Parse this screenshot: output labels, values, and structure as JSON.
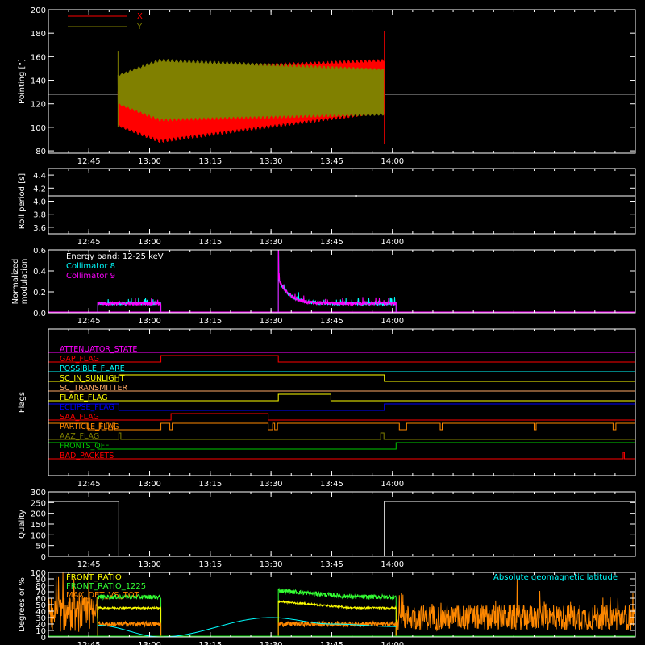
{
  "colors": {
    "background": "#000000",
    "foreground": "#ffffff",
    "red": "#ff0000",
    "olive": "#808000",
    "cyan": "#00ffff",
    "magenta": "#ff00ff",
    "orange": "#ff8800",
    "yellow": "#ffff00",
    "blue": "#0000ff",
    "green": "#00cc00",
    "lightgreen": "#33ff33",
    "flag_pale": "#ffaa66"
  },
  "time_axis": {
    "start_minutes": 755,
    "end_minutes": 900,
    "tick_labels": [
      "12:45",
      "13:00",
      "13:15",
      "13:30",
      "13:45",
      "14:00"
    ],
    "tick_minutes": [
      765,
      780,
      795,
      810,
      825,
      840
    ]
  },
  "chart_data": [
    {
      "id": "pointing",
      "type": "line",
      "title": "",
      "ylabel": "Pointing [\"]",
      "ylim": [
        78,
        200
      ],
      "yticks": [
        80,
        100,
        120,
        140,
        160,
        180,
        200
      ],
      "legend": {
        "position": "top-left",
        "entries": [
          "X",
          "Y"
        ]
      },
      "data_window": [
        772.2,
        838.0
      ],
      "reference_line": 128,
      "series": [
        {
          "name": "X",
          "color": "red",
          "center_start": 116,
          "center_end": 135,
          "halfwidth_start": 34,
          "halfwidth_end": 23,
          "min_start": 82
        },
        {
          "name": "Y",
          "color": "olive",
          "center_start": 132,
          "center_end": 130,
          "halfwidth_start": 28,
          "halfwidth_end": 20
        }
      ]
    },
    {
      "id": "roll",
      "type": "line",
      "ylabel": "Roll period [s]",
      "ylim": [
        3.5,
        4.5
      ],
      "yticks": [
        "3.6",
        "3.8",
        "4.0",
        "4.2",
        "4.4"
      ],
      "yticks_values": [
        3.6,
        3.8,
        4.0,
        4.2,
        4.4
      ],
      "value": 4.08
    },
    {
      "id": "modulation",
      "type": "line",
      "ylabel": [
        "Normalized",
        "modulation"
      ],
      "ylim": [
        0,
        0.6
      ],
      "yticks": [
        "0.0",
        "0.2",
        "0.4",
        "0.6"
      ],
      "yticks_values": [
        0,
        0.2,
        0.4,
        0.6
      ],
      "annotations": [
        "Energy band: 12-25 keV"
      ],
      "series": [
        {
          "name": "Collimator 8",
          "color": "cyan"
        },
        {
          "name": "Collimator 9",
          "color": "magenta"
        }
      ],
      "segments": [
        {
          "start": 767.2,
          "end": 782.8,
          "level": 0.09
        },
        {
          "start": 811.8,
          "end": 840.9,
          "level": 0.09,
          "spike": 0.6,
          "decay_to": 0.09
        }
      ]
    },
    {
      "id": "flags",
      "type": "line",
      "ylabel": "Flags",
      "flags": [
        {
          "name": "ATTENUATOR_STATE",
          "color": "magenta",
          "high": []
        },
        {
          "name": "GAP_FLAG",
          "color": "red",
          "high": [
            [
              782.8,
              811.8
            ]
          ]
        },
        {
          "name": "POSSIBLE_FLARE",
          "color": "cyan",
          "high": []
        },
        {
          "name": "SC_IN_SUNLIGHT",
          "color": "yellow",
          "high": [
            [
              772.4,
              838.0
            ]
          ]
        },
        {
          "name": "SC_TRANSMITTER",
          "color": "flag_pale",
          "high": []
        },
        {
          "name": "FLARE_FLAG",
          "color": "yellow",
          "high": [
            [
              811.8,
              824.8
            ]
          ]
        },
        {
          "name": "ECLIPSE_FLAG",
          "color": "blue",
          "high": [
            [
              755,
              772.4
            ],
            [
              838.0,
              900
            ]
          ]
        },
        {
          "name": "SAA_FLAG",
          "color": "red",
          "high": [
            [
              785.3,
              809.3
            ]
          ]
        },
        {
          "name": "PARTICLE_FLAG",
          "color": "orange",
          "high": [
            [
              755,
              764.8
            ],
            [
              767.6,
              768.2
            ],
            [
              769.3,
              769.9
            ],
            [
              770.9,
              771.4
            ],
            [
              782.8,
              785.0
            ],
            [
              785.6,
              809.3
            ],
            [
              810.4,
              810.9
            ],
            [
              811.6,
              841.7
            ],
            [
              843.5,
              851.8
            ],
            [
              852.3,
              875.0
            ],
            [
              875.5,
              894.5
            ],
            [
              895.2,
              900
            ]
          ]
        },
        {
          "name": "AAZ_FLAG",
          "color": "olive",
          "high": [
            [
              772.4,
              772.9
            ],
            [
              837.1,
              837.9
            ]
          ]
        },
        {
          "name": "FRONTS_OFF",
          "color": "green",
          "high": [
            [
              755,
              767.2
            ],
            [
              840.9,
              900
            ]
          ]
        },
        {
          "name": "BAD_PACKETS",
          "color": "red",
          "high": [
            [
              897.0,
              897.3
            ]
          ]
        }
      ]
    },
    {
      "id": "quality",
      "type": "line",
      "ylabel": "Quality",
      "ylim": [
        0,
        300
      ],
      "yticks": [
        0,
        50,
        100,
        150,
        200,
        250,
        300
      ],
      "high_value": 255,
      "low_value": 0,
      "high": [
        [
          755,
          772.4
        ],
        [
          838.0,
          900
        ]
      ]
    },
    {
      "id": "ratios",
      "type": "line",
      "ylabel": "Degrees or %",
      "ylim": [
        0,
        100
      ],
      "yticks": [
        0,
        10,
        20,
        30,
        40,
        50,
        60,
        70,
        80,
        90,
        100
      ],
      "series": [
        {
          "name": "FRONT_RATIO",
          "color": "yellow"
        },
        {
          "name": "FRONT_RATIO_1225",
          "color": "lightgreen"
        },
        {
          "name": "MAX_DET_VS_TOT",
          "color": "orange"
        },
        {
          "name": "Absolute geomagnetic latitude",
          "color": "cyan"
        }
      ],
      "geomag": {
        "points": [
          [
            767.2,
            18
          ],
          [
            782.8,
            0
          ],
          [
            810.0,
            30
          ],
          [
            825.0,
            20
          ],
          [
            840.9,
            16
          ]
        ]
      },
      "segments": [
        {
          "start": 767.2,
          "end": 782.8,
          "green": 62,
          "yellow": 45,
          "orange": 20
        },
        {
          "start": 811.8,
          "end": 840.9,
          "green": 62,
          "yellow": 45,
          "orange": 20,
          "green_start": 72,
          "yellow_start": 55
        }
      ]
    }
  ]
}
